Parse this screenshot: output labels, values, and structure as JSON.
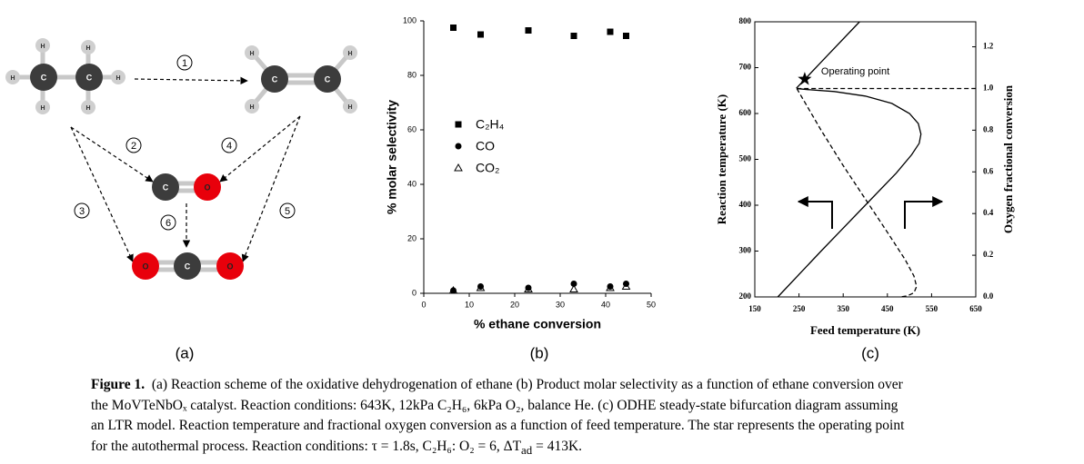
{
  "panel_labels": [
    "(a)",
    "(b)",
    "(c)"
  ],
  "diagram": {
    "atoms": [
      "H",
      "H",
      "H",
      "C",
      "C",
      "H",
      "H",
      "H",
      "H",
      "H",
      "C",
      "C",
      "H",
      "H",
      "C",
      "O",
      "O",
      "C",
      "O"
    ],
    "steps": [
      "1",
      "2",
      "3",
      "4",
      "5",
      "6"
    ]
  },
  "chart_data": [
    {
      "type": "scatter",
      "xlabel": "% ethane conversion",
      "ylabel": "% molar selectivity",
      "xlim": [
        0,
        50
      ],
      "xticks": [
        0,
        10,
        20,
        30,
        40,
        50
      ],
      "ylim": [
        0,
        100
      ],
      "yticks": [
        0,
        20,
        40,
        60,
        80,
        100
      ],
      "legend": "center left",
      "series": [
        {
          "name": "C₂H₄",
          "color": "#000000",
          "marker": "square",
          "x": [
            6.5,
            12.5,
            23,
            33,
            41,
            44.5
          ],
          "values": [
            97.5,
            95,
            96.5,
            94.5,
            96,
            94.5
          ]
        },
        {
          "name": "CO",
          "color": "#000000",
          "marker": "circle",
          "x": [
            6.5,
            12.5,
            23,
            33,
            41,
            44.5
          ],
          "values": [
            1,
            2.5,
            2,
            3.5,
            2.5,
            3.5
          ]
        },
        {
          "name": "CO₂",
          "color": "#000000",
          "marker": "triangle",
          "x": [
            6.5,
            12.5,
            23,
            33,
            41,
            44.5
          ],
          "values": [
            1,
            2,
            1.5,
            1.5,
            2,
            2.5
          ]
        }
      ]
    },
    {
      "type": "line",
      "xlabel": "Feed temperature (K)",
      "ylabel": "Reaction temperature (K)",
      "y2label": "Oxygen fractional conversion",
      "xlim": [
        150,
        650
      ],
      "xticks": [
        150,
        250,
        350,
        450,
        550,
        650
      ],
      "ylim": [
        200,
        800
      ],
      "yticks": [
        200,
        300,
        400,
        500,
        600,
        700,
        800
      ],
      "y2lim": [
        0,
        1.32
      ],
      "y2ticks": [
        {
          "value": 0,
          "label": "0.0"
        },
        0.2,
        0.4,
        0.6,
        0.8,
        {
          "value": 1,
          "label": "1.0"
        },
        1.2
      ],
      "series": [
        {
          "color": "#000000",
          "style": "solid",
          "x": [
            202,
            300,
            400,
            470,
            505,
            522,
            526,
            520,
            500,
            460,
            400,
            330,
            270,
            248,
            245,
            300,
            387
          ],
          "values": [
            200,
            300,
            400,
            470,
            510,
            535,
            555,
            578,
            600,
            622,
            638,
            648,
            652,
            654,
            656,
            712,
            800
          ]
        },
        {
          "color": "#000000",
          "style": "dashed",
          "axis": "y2",
          "x": [
            245,
            300,
            350,
            400,
            450,
            490,
            510,
            516,
            510,
            495,
            480
          ],
          "values": [
            1.0,
            0.8,
            0.63,
            0.47,
            0.31,
            0.18,
            0.1,
            0.05,
            0.02,
            0.005,
            0.0
          ]
        },
        {
          "color": "#000000",
          "style": "dashed",
          "axis": "y2",
          "x": [
            245,
            650
          ],
          "values": [
            1.0,
            1.0
          ]
        }
      ],
      "annotations": [
        {
          "text": "Operating point",
          "x": 263,
          "y": 675
        }
      ]
    }
  ],
  "caption": {
    "label": "Figure 1.",
    "lines": [
      "(a) Reaction scheme of the oxidative dehydrogenation of ethane (b) Product molar selectivity as a function of ethane conversion over",
      "the MoVTeNbOₓ catalyst. Reaction conditions: 643K, 12kPa C₂H₆, 6kPa O₂, balance He. (c) ODHE steady-state bifurcation diagram assuming",
      "an LTR model. Reaction temperature and fractional oxygen conversion as a function of feed temperature. The star represents the operating point"
    ],
    "last_line": [
      "for the autothermal process. Reaction conditions: τ = 1.8s, C₂H₆: O₂ = 6, ΔT",
      "ad",
      " = 413K."
    ]
  }
}
